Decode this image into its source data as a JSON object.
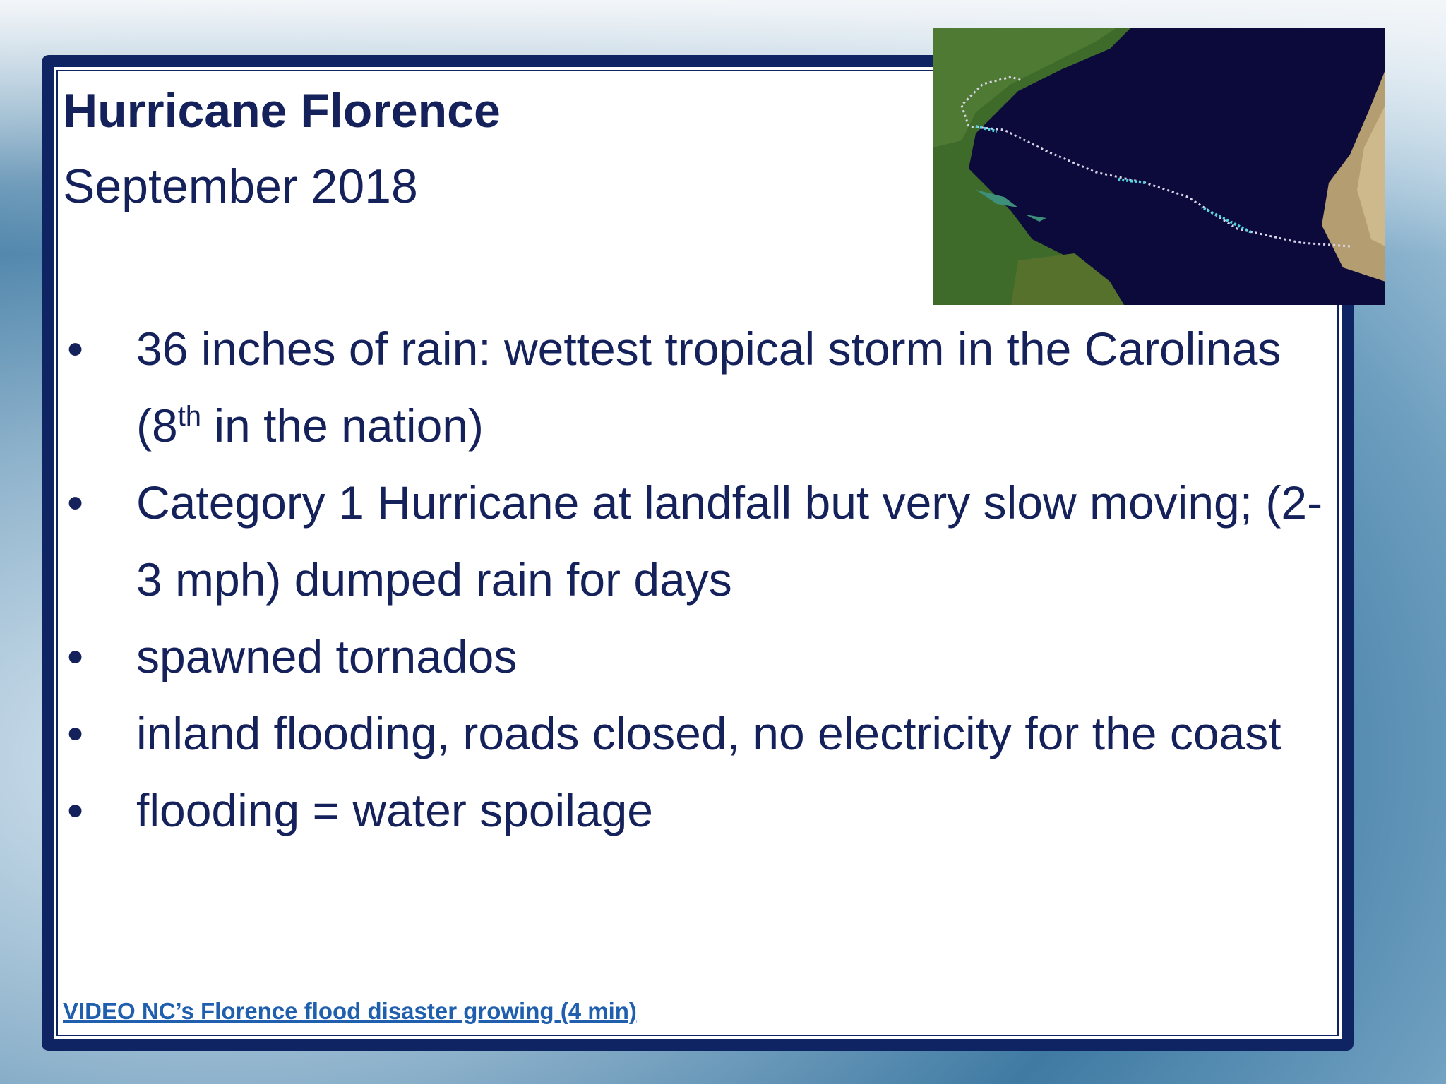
{
  "slide": {
    "title": "Hurricane Florence",
    "subtitle": "September 2018",
    "bullets": [
      {
        "before": "36 inches of rain: wettest tropical storm in the Carolinas (8",
        "sup": "th",
        "after": " in the nation)"
      },
      {
        "text": "Category 1 Hurricane at landfall but very slow moving; (2-3 mph) dumped rain for days"
      },
      {
        "text": "spawned tornados"
      },
      {
        "text": "inland flooding, roads closed, no electricity for the coast"
      },
      {
        "text": "flooding = water spoilage"
      }
    ],
    "link": "VIDEO NC’s Florence flood disaster growing (4 min)"
  }
}
